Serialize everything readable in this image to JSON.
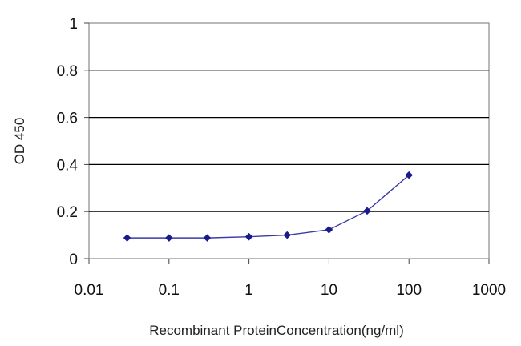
{
  "chart_data": {
    "type": "line",
    "xscale": "log",
    "xlim": [
      0.01,
      1000
    ],
    "ylim": [
      0,
      1
    ],
    "xticks": [
      "0.01",
      "0.1",
      "1",
      "10",
      "100",
      "1000"
    ],
    "yticks": [
      "0",
      "0.2",
      "0.4",
      "0.6",
      "0.8",
      "1"
    ],
    "xlabel": "Recombinant ProteinConcentration(ng/ml)",
    "ylabel": "OD 450",
    "grid": "horizontal",
    "series": [
      {
        "x": [
          0.03,
          0.1,
          0.3,
          1,
          3,
          10,
          30,
          100
        ],
        "y": [
          0.088,
          0.088,
          0.088,
          0.093,
          0.1,
          0.123,
          0.203,
          0.355
        ]
      }
    ],
    "colors": {
      "line": "#3a3aa8",
      "marker": "#1a1a8c",
      "grid": "#000000",
      "frame": "#888888"
    }
  }
}
